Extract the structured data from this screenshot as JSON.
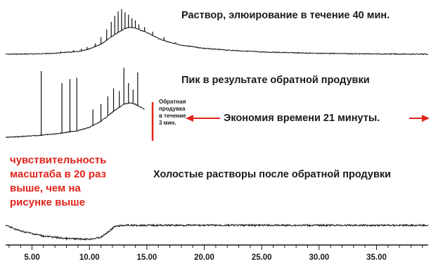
{
  "labels": {
    "trace1": "Раствор, элюирование в течение 40 мин.",
    "trace2": "Пик в результате обратной продувки",
    "trace3": "Холостые растворы после обратной продувки",
    "backflush_lines": [
      "Обратная",
      "продувка",
      "в течение",
      "3 мин."
    ],
    "time_saving": "Экономия времени 21 минуты.",
    "sensitivity_lines": [
      "чувствительность",
      "масштаба в 20 раз",
      "выше, чем на",
      "рисунке выше"
    ]
  },
  "colors": {
    "trace": "#111111",
    "accent": "#e2231a",
    "axis": "#1a1a1a"
  },
  "chart_data": [
    {
      "type": "line",
      "title": "Раствор, элюирование в течение 40 мин.",
      "xlim": [
        2.7,
        39.5
      ],
      "x_ticks": [
        5,
        10,
        15,
        20,
        25,
        30,
        35
      ],
      "x_tick_labels": [
        "5.00",
        "10.00",
        "15.00",
        "20.00",
        "25.00",
        "30.00",
        "35.00"
      ],
      "envelope": {
        "x": [
          2.7,
          5,
          7,
          9,
          10,
          11,
          12,
          13,
          13.5,
          14,
          15,
          16,
          17,
          18,
          20,
          22,
          25,
          28,
          30,
          33,
          36,
          39.5
        ],
        "y": [
          0.0,
          0.005,
          0.02,
          0.06,
          0.12,
          0.22,
          0.4,
          0.56,
          0.6,
          0.58,
          0.48,
          0.35,
          0.26,
          0.2,
          0.13,
          0.09,
          0.05,
          0.03,
          0.02,
          0.01,
          0.005,
          0.0
        ]
      },
      "peaks": {
        "x": [
          7.5,
          8.6,
          9.3,
          9.8,
          10.5,
          11.0,
          11.5,
          11.9,
          12.2,
          12.5,
          12.8,
          13.1,
          13.4,
          13.7,
          14.0,
          14.3,
          14.8,
          15.5,
          16.5,
          17.5,
          18.5,
          20.0
        ],
        "y": [
          0.06,
          0.09,
          0.12,
          0.16,
          0.24,
          0.38,
          0.55,
          0.72,
          0.85,
          0.95,
          1.0,
          0.93,
          0.88,
          0.8,
          0.75,
          0.66,
          0.6,
          0.5,
          0.38,
          0.26,
          0.18,
          0.12
        ]
      }
    },
    {
      "type": "line",
      "title": "Пик в результате обратной продувки",
      "xlim": [
        2.7,
        39.5
      ],
      "trace_end_x": 14.8,
      "envelope": {
        "x": [
          2.7,
          5,
          7,
          9,
          10,
          11,
          12,
          13,
          13.5,
          14,
          14.8
        ],
        "y": [
          0.0,
          0.02,
          0.05,
          0.1,
          0.15,
          0.24,
          0.38,
          0.5,
          0.52,
          0.5,
          0.42
        ]
      },
      "peaks": {
        "x": [
          5.8,
          7.6,
          8.3,
          8.9,
          10.3,
          11.0,
          11.6,
          12.1,
          12.6,
          13.0,
          13.4,
          13.8,
          14.2
        ],
        "y": [
          1.0,
          0.82,
          0.88,
          0.9,
          0.42,
          0.5,
          0.62,
          0.74,
          0.7,
          1.05,
          0.82,
          0.72,
          0.98
        ]
      },
      "backflush_marker_x": 15.5,
      "time_saving_arrow_x": [
        18.5,
        39.5
      ]
    },
    {
      "type": "line",
      "title": "Холостые растворы после обратной продувки",
      "xlim": [
        2.7,
        39.5
      ],
      "baseline": {
        "x": [
          2.7,
          4,
          6,
          8,
          10,
          11,
          11.6,
          12.2,
          13,
          20,
          30,
          39.5
        ],
        "y": [
          0.0,
          -0.18,
          -0.34,
          -0.42,
          -0.44,
          -0.38,
          -0.22,
          -0.04,
          0.0,
          0.0,
          0.0,
          0.0
        ]
      }
    }
  ]
}
